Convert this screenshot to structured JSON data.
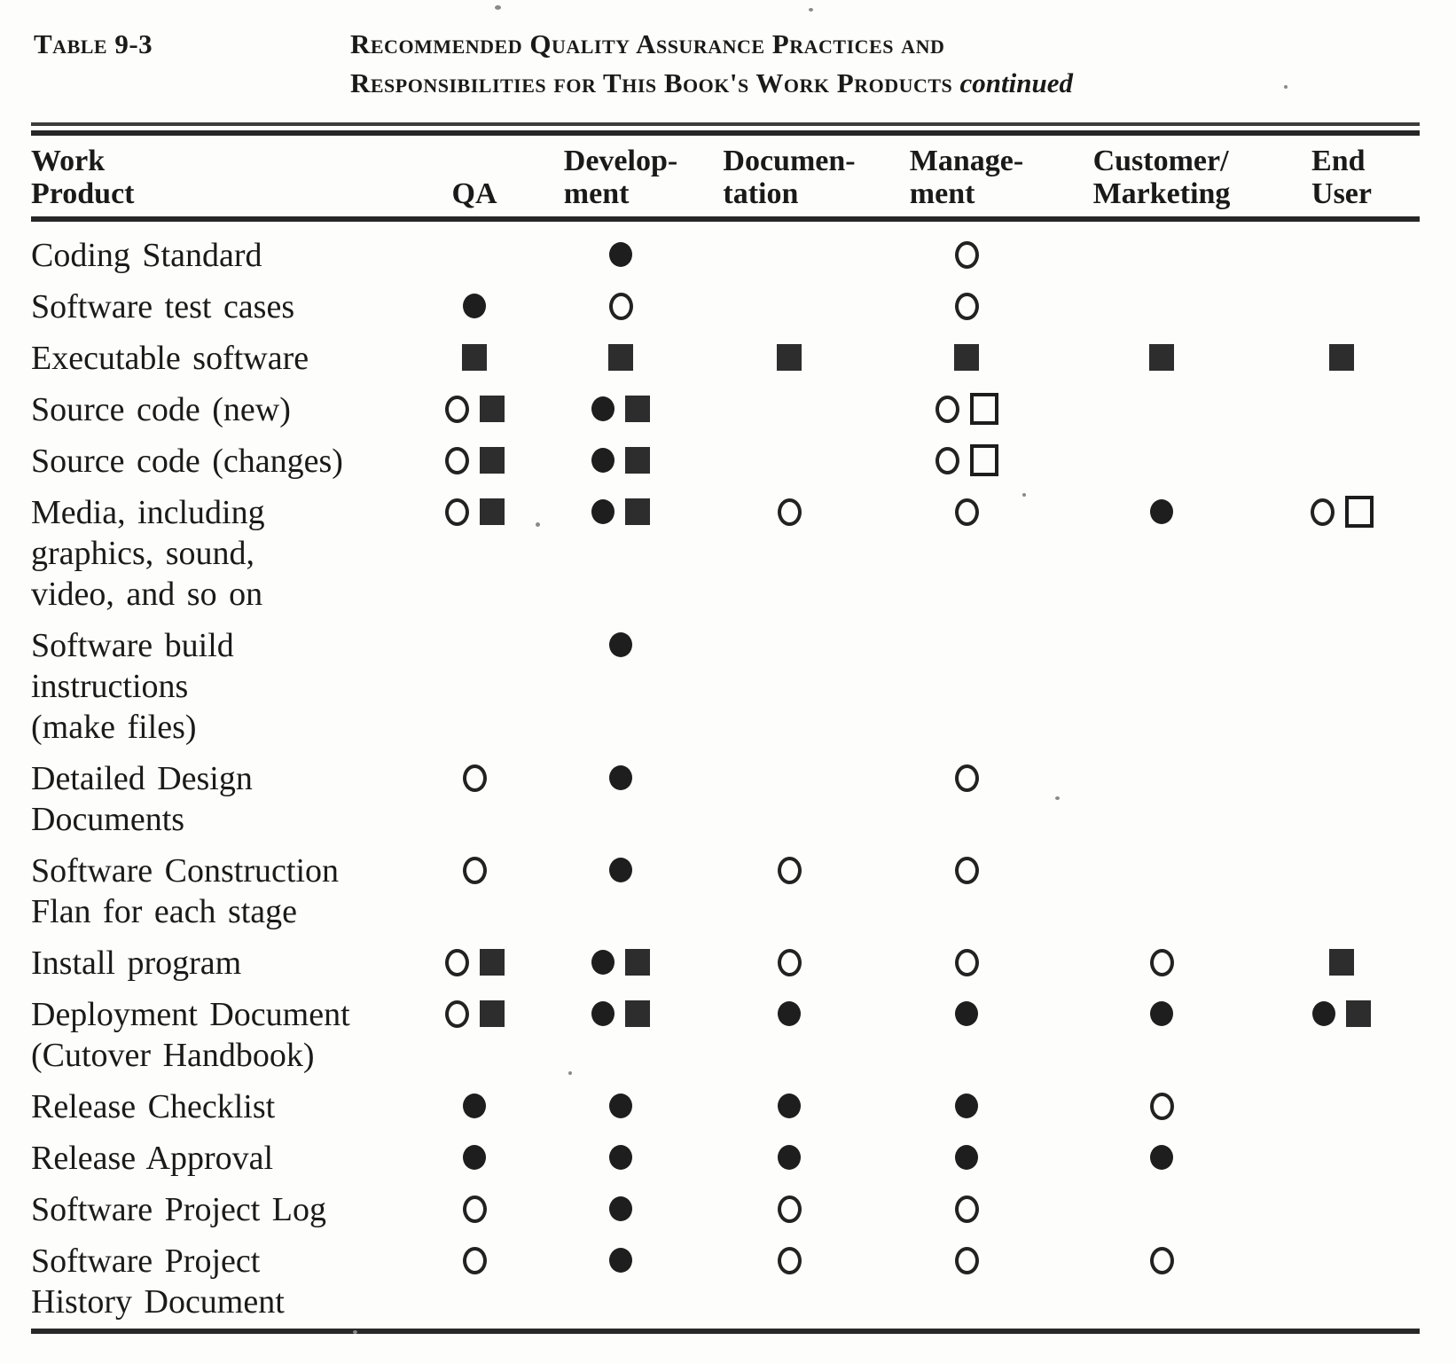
{
  "title": {
    "label": "Table 9-3",
    "line1": "Recommended Quality Assurance Practices and",
    "line2": "Responsibilities for This Book's Work Products",
    "continued": "continued"
  },
  "table": {
    "columns": [
      {
        "id": "work_product",
        "lines": [
          "Work",
          "Product"
        ]
      },
      {
        "id": "qa",
        "lines": [
          "QA"
        ]
      },
      {
        "id": "development",
        "lines": [
          "Develop-",
          "ment"
        ]
      },
      {
        "id": "documentation",
        "lines": [
          "Documen-",
          "tation"
        ]
      },
      {
        "id": "management",
        "lines": [
          "Manage-",
          "ment"
        ]
      },
      {
        "id": "customer_marketing",
        "lines": [
          "Customer/",
          "Marketing"
        ]
      },
      {
        "id": "end_user",
        "lines": [
          "End",
          "User"
        ]
      }
    ],
    "symbol_legend": {
      "fc": "filled-circle",
      "oc": "open-circle",
      "fs": "filled-square",
      "os": "open-square"
    },
    "rows": [
      {
        "label_lines": [
          "Coding Standard"
        ],
        "cells": {
          "qa": [],
          "development": [
            "fc"
          ],
          "documentation": [],
          "management": [
            "oc"
          ],
          "customer_marketing": [],
          "end_user": []
        }
      },
      {
        "label_lines": [
          "Software test cases"
        ],
        "cells": {
          "qa": [
            "fc"
          ],
          "development": [
            "oc"
          ],
          "documentation": [],
          "management": [
            "oc"
          ],
          "customer_marketing": [],
          "end_user": []
        }
      },
      {
        "label_lines": [
          "Executable software"
        ],
        "cells": {
          "qa": [
            "fs"
          ],
          "development": [
            "fs"
          ],
          "documentation": [
            "fs"
          ],
          "management": [
            "fs"
          ],
          "customer_marketing": [
            "fs"
          ],
          "end_user": [
            "fs"
          ]
        }
      },
      {
        "label_lines": [
          "Source code (new)"
        ],
        "cells": {
          "qa": [
            "oc",
            "fs"
          ],
          "development": [
            "fc",
            "fs"
          ],
          "documentation": [],
          "management": [
            "oc",
            "os"
          ],
          "customer_marketing": [],
          "end_user": []
        }
      },
      {
        "label_lines": [
          "Source code (changes)"
        ],
        "cells": {
          "qa": [
            "oc",
            "fs"
          ],
          "development": [
            "fc",
            "fs"
          ],
          "documentation": [],
          "management": [
            "oc",
            "os"
          ],
          "customer_marketing": [],
          "end_user": []
        }
      },
      {
        "label_lines": [
          "Media, including",
          "graphics, sound,",
          "video, and so on"
        ],
        "cells": {
          "qa": [
            "oc",
            "fs"
          ],
          "development": [
            "fc",
            "fs"
          ],
          "documentation": [
            "oc"
          ],
          "management": [
            "oc"
          ],
          "customer_marketing": [
            "fc"
          ],
          "end_user": [
            "oc",
            "os"
          ]
        }
      },
      {
        "label_lines": [
          "Software build",
          "instructions",
          "(make files)"
        ],
        "cells": {
          "qa": [],
          "development": [
            "fc"
          ],
          "documentation": [],
          "management": [],
          "customer_marketing": [],
          "end_user": []
        }
      },
      {
        "label_lines": [
          "Detailed Design",
          "Documents"
        ],
        "cells": {
          "qa": [
            "oc"
          ],
          "development": [
            "fc"
          ],
          "documentation": [],
          "management": [
            "oc"
          ],
          "customer_marketing": [],
          "end_user": []
        }
      },
      {
        "label_lines": [
          "Software Construction",
          "Flan for each stage"
        ],
        "cells": {
          "qa": [
            "oc"
          ],
          "development": [
            "fc"
          ],
          "documentation": [
            "oc"
          ],
          "management": [
            "oc"
          ],
          "customer_marketing": [],
          "end_user": []
        }
      },
      {
        "label_lines": [
          "Install program"
        ],
        "cells": {
          "qa": [
            "oc",
            "fs"
          ],
          "development": [
            "fc",
            "fs"
          ],
          "documentation": [
            "oc"
          ],
          "management": [
            "oc"
          ],
          "customer_marketing": [
            "oc"
          ],
          "end_user": [
            "fs"
          ]
        }
      },
      {
        "label_lines": [
          "Deployment Document",
          "(Cutover Handbook)"
        ],
        "cells": {
          "qa": [
            "oc",
            "fs"
          ],
          "development": [
            "fc",
            "fs"
          ],
          "documentation": [
            "fc"
          ],
          "management": [
            "fc"
          ],
          "customer_marketing": [
            "fc"
          ],
          "end_user": [
            "fc",
            "fs"
          ]
        }
      },
      {
        "label_lines": [
          "Release Checklist"
        ],
        "cells": {
          "qa": [
            "fc"
          ],
          "development": [
            "fc"
          ],
          "documentation": [
            "fc"
          ],
          "management": [
            "fc"
          ],
          "customer_marketing": [
            "oc"
          ],
          "end_user": []
        }
      },
      {
        "label_lines": [
          "Release Approval"
        ],
        "cells": {
          "qa": [
            "fc"
          ],
          "development": [
            "fc"
          ],
          "documentation": [
            "fc"
          ],
          "management": [
            "fc"
          ],
          "customer_marketing": [
            "fc"
          ],
          "end_user": []
        }
      },
      {
        "label_lines": [
          "Software Project Log"
        ],
        "cells": {
          "qa": [
            "oc"
          ],
          "development": [
            "fc"
          ],
          "documentation": [
            "oc"
          ],
          "management": [
            "oc"
          ],
          "customer_marketing": [],
          "end_user": []
        }
      },
      {
        "label_lines": [
          "Software Project",
          "History Document"
        ],
        "cells": {
          "qa": [
            "oc"
          ],
          "development": [
            "fc"
          ],
          "documentation": [
            "oc"
          ],
          "management": [
            "oc"
          ],
          "customer_marketing": [
            "oc"
          ],
          "end_user": []
        }
      }
    ]
  },
  "colors": {
    "ink": "#1a1a1a",
    "rule": "#262626",
    "paper": "#fdfdfb"
  }
}
